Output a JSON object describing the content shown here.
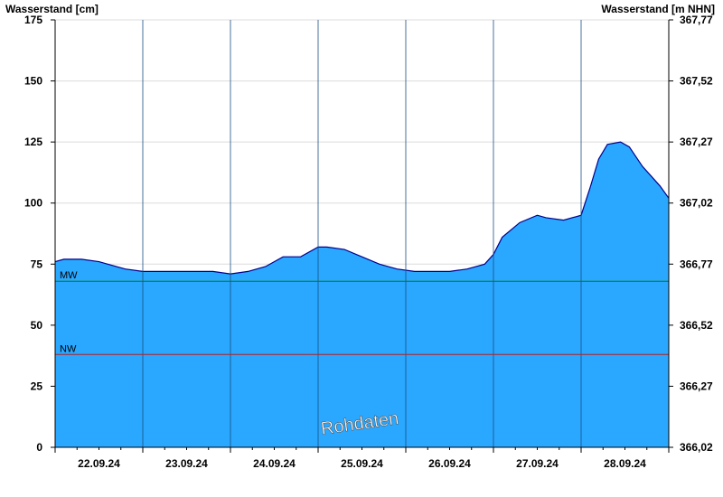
{
  "chart_data": {
    "type": "area",
    "y_left_label": "Wasserstand [cm]",
    "y_right_label": "Wasserstand [m NHN]",
    "ylim": [
      0,
      175
    ],
    "y_ticks": [
      0,
      25,
      50,
      75,
      100,
      125,
      150,
      175
    ],
    "y_right_ticks": [
      "366,02",
      "366,27",
      "366,52",
      "366,77",
      "367,02",
      "367,27",
      "367,52",
      "367,77"
    ],
    "x_range_days": [
      0,
      7
    ],
    "day_labels": [
      "22.09.24",
      "23.09.24",
      "24.09.24",
      "25.09.24",
      "26.09.24",
      "27.09.24",
      "28.09.24"
    ],
    "grid": true,
    "fill_color": "#2aa7ff",
    "line_color": "#00008b",
    "reference_lines": [
      {
        "label": "MW",
        "value": 68,
        "color": "#008000"
      },
      {
        "label": "NW",
        "value": 38,
        "color": "#b22222"
      }
    ],
    "series": [
      {
        "x": [
          0,
          0.1,
          0.3,
          0.5,
          0.6,
          0.8,
          1.0,
          1.2,
          1.5,
          1.8,
          2.0,
          2.2,
          2.4,
          2.6,
          2.8,
          3.0,
          3.1,
          3.3,
          3.5,
          3.7,
          3.9,
          4.1,
          4.3,
          4.5,
          4.7,
          4.9,
          5.0,
          5.1,
          5.3,
          5.5,
          5.6,
          5.8,
          6.0,
          6.1,
          6.2,
          6.3,
          6.45,
          6.55,
          6.7,
          6.9,
          7.0
        ],
        "y": [
          76,
          77,
          77,
          76,
          75,
          73,
          72,
          72,
          72,
          72,
          71,
          72,
          74,
          78,
          78,
          82,
          82,
          81,
          78,
          75,
          73,
          72,
          72,
          72,
          73,
          75,
          79,
          86,
          92,
          95,
          94,
          93,
          95,
          106,
          118,
          124,
          125,
          123,
          115,
          107,
          102
        ]
      }
    ],
    "watermark": "Rohdaten"
  }
}
